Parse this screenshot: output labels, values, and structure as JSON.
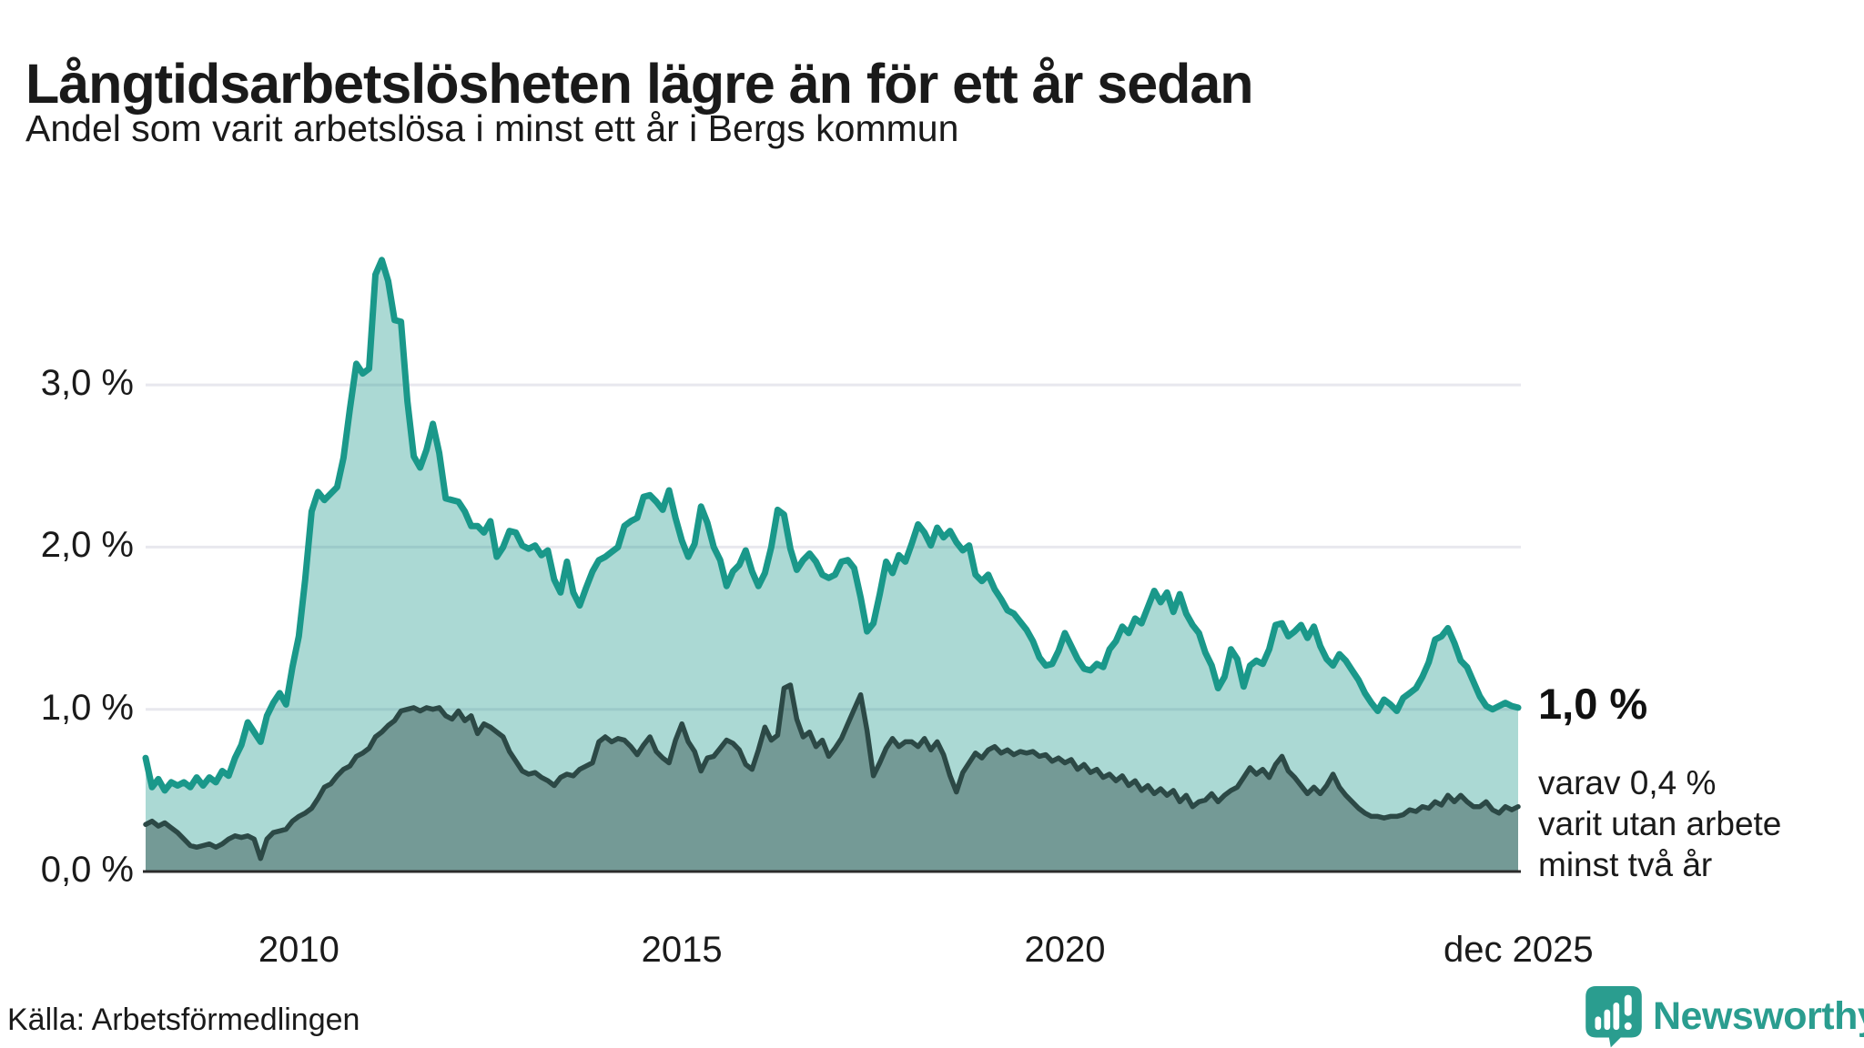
{
  "header": {
    "title": "Långtidsarbetslösheten lägre än för ett år sedan",
    "subtitle": "Andel som varit arbetslösa i minst ett år i Bergs kommun"
  },
  "annotations": {
    "end_value": "1,0 %",
    "end_sub": [
      "varav 0,4 %",
      "varit utan arbete",
      "minst två år"
    ]
  },
  "footer": {
    "source": "Källa: Arbetsförmedlingen",
    "brand": "Newsworthy"
  },
  "colors": {
    "accent_teal": "#1a988a",
    "dark_teal": "#2c4946",
    "axis": "#2b2b2b",
    "grid": "#e8e8ee",
    "brand_teal": "#2a9d8f",
    "text": "#1a1a1a"
  },
  "chart_data": {
    "type": "area",
    "title": "Långtidsarbetslösheten lägre än för ett år sedan",
    "subtitle": "Andel som varit arbetslösa i minst ett år i Bergs kommun",
    "unit": "%",
    "grid": "horizontal",
    "legend_position": "none",
    "ylim": [
      0,
      4.25
    ],
    "x_range": {
      "start": "jan 2008",
      "end": "dec 2025",
      "interval": "monthly"
    },
    "x_ticks": [
      {
        "label": "2010",
        "year": 2010.0
      },
      {
        "label": "2015",
        "year": 2015.0
      },
      {
        "label": "2020",
        "year": 2020.0
      },
      {
        "label": "dec 2025",
        "year": 2025.92
      }
    ],
    "y_ticks": [
      {
        "label": "0,0 %",
        "value": 0
      },
      {
        "label": "1,0 %",
        "value": 1
      },
      {
        "label": "2,0 %",
        "value": 2
      },
      {
        "label": "3,0 %",
        "value": 3
      }
    ],
    "series": [
      {
        "name": "Andel som varit arbetslösa i minst ett år",
        "end_label": "1,0 %",
        "color": "#1a988a",
        "fill_opacity": 0.37,
        "line_width": 7,
        "values": [
          0.7,
          0.52,
          0.57,
          0.5,
          0.55,
          0.53,
          0.55,
          0.52,
          0.58,
          0.53,
          0.58,
          0.55,
          0.62,
          0.59,
          0.7,
          0.78,
          0.92,
          0.86,
          0.8,
          0.96,
          1.04,
          1.1,
          1.03,
          1.26,
          1.45,
          1.8,
          2.22,
          2.34,
          2.29,
          2.33,
          2.37,
          2.55,
          2.85,
          3.13,
          3.07,
          3.1,
          3.68,
          3.77,
          3.64,
          3.4,
          3.39,
          2.9,
          2.56,
          2.49,
          2.6,
          2.76,
          2.58,
          2.3,
          2.29,
          2.28,
          2.22,
          2.13,
          2.13,
          2.09,
          2.16,
          1.94,
          2.0,
          2.1,
          2.09,
          2.01,
          1.99,
          2.01,
          1.95,
          1.98,
          1.8,
          1.72,
          1.91,
          1.72,
          1.64,
          1.75,
          1.85,
          1.92,
          1.94,
          1.97,
          2.0,
          2.13,
          2.16,
          2.18,
          2.31,
          2.32,
          2.28,
          2.23,
          2.35,
          2.18,
          2.04,
          1.94,
          2.02,
          2.25,
          2.15,
          2.0,
          1.92,
          1.76,
          1.85,
          1.89,
          1.98,
          1.85,
          1.76,
          1.84,
          2.0,
          2.23,
          2.2,
          1.99,
          1.86,
          1.92,
          1.96,
          1.91,
          1.83,
          1.81,
          1.83,
          1.91,
          1.92,
          1.87,
          1.69,
          1.48,
          1.53,
          1.71,
          1.91,
          1.84,
          1.95,
          1.91,
          2.02,
          2.14,
          2.09,
          2.01,
          2.12,
          2.06,
          2.1,
          2.03,
          1.98,
          2.01,
          1.83,
          1.79,
          1.83,
          1.74,
          1.68,
          1.61,
          1.59,
          1.54,
          1.49,
          1.42,
          1.32,
          1.27,
          1.28,
          1.36,
          1.47,
          1.39,
          1.31,
          1.25,
          1.24,
          1.28,
          1.26,
          1.37,
          1.42,
          1.51,
          1.47,
          1.56,
          1.53,
          1.63,
          1.73,
          1.66,
          1.72,
          1.6,
          1.71,
          1.59,
          1.52,
          1.47,
          1.35,
          1.27,
          1.13,
          1.2,
          1.37,
          1.31,
          1.14,
          1.27,
          1.3,
          1.28,
          1.37,
          1.52,
          1.53,
          1.45,
          1.48,
          1.52,
          1.44,
          1.51,
          1.39,
          1.31,
          1.27,
          1.34,
          1.3,
          1.24,
          1.18,
          1.1,
          1.04,
          0.99,
          1.06,
          1.03,
          0.99,
          1.07,
          1.1,
          1.13,
          1.2,
          1.29,
          1.43,
          1.45,
          1.5,
          1.41,
          1.3,
          1.26,
          1.17,
          1.08,
          1.02,
          1.0,
          1.02,
          1.04,
          1.02,
          1.01
        ]
      },
      {
        "name": "varav andel som varit utan arbete minst två år",
        "end_label": "varav 0,4 % varit utan arbete minst två år",
        "color": "#2c4946",
        "fill_opacity": 0.43,
        "line_width": 5.5,
        "values": [
          0.29,
          0.31,
          0.28,
          0.3,
          0.27,
          0.24,
          0.2,
          0.16,
          0.15,
          0.16,
          0.17,
          0.15,
          0.17,
          0.2,
          0.22,
          0.21,
          0.22,
          0.2,
          0.08,
          0.2,
          0.24,
          0.25,
          0.26,
          0.31,
          0.34,
          0.36,
          0.39,
          0.45,
          0.52,
          0.54,
          0.59,
          0.63,
          0.65,
          0.71,
          0.73,
          0.76,
          0.83,
          0.86,
          0.9,
          0.93,
          0.99,
          1.0,
          1.01,
          0.99,
          1.01,
          1.0,
          1.01,
          0.96,
          0.94,
          0.99,
          0.93,
          0.96,
          0.85,
          0.91,
          0.89,
          0.86,
          0.83,
          0.74,
          0.68,
          0.62,
          0.6,
          0.61,
          0.58,
          0.56,
          0.53,
          0.58,
          0.6,
          0.59,
          0.63,
          0.65,
          0.67,
          0.8,
          0.83,
          0.8,
          0.82,
          0.81,
          0.77,
          0.72,
          0.78,
          0.83,
          0.74,
          0.7,
          0.67,
          0.81,
          0.91,
          0.8,
          0.74,
          0.62,
          0.7,
          0.71,
          0.76,
          0.81,
          0.79,
          0.75,
          0.66,
          0.63,
          0.75,
          0.89,
          0.81,
          0.84,
          1.13,
          1.15,
          0.94,
          0.83,
          0.86,
          0.77,
          0.81,
          0.71,
          0.76,
          0.82,
          0.91,
          1.0,
          1.09,
          0.87,
          0.59,
          0.67,
          0.76,
          0.82,
          0.77,
          0.8,
          0.8,
          0.77,
          0.82,
          0.75,
          0.8,
          0.72,
          0.59,
          0.49,
          0.61,
          0.67,
          0.73,
          0.7,
          0.75,
          0.77,
          0.73,
          0.75,
          0.72,
          0.74,
          0.73,
          0.74,
          0.71,
          0.72,
          0.68,
          0.7,
          0.67,
          0.69,
          0.63,
          0.66,
          0.61,
          0.63,
          0.58,
          0.6,
          0.56,
          0.59,
          0.53,
          0.56,
          0.5,
          0.53,
          0.48,
          0.51,
          0.47,
          0.5,
          0.43,
          0.47,
          0.4,
          0.43,
          0.44,
          0.48,
          0.43,
          0.47,
          0.5,
          0.52,
          0.58,
          0.64,
          0.6,
          0.63,
          0.58,
          0.66,
          0.71,
          0.62,
          0.58,
          0.53,
          0.48,
          0.52,
          0.48,
          0.53,
          0.6,
          0.52,
          0.47,
          0.43,
          0.39,
          0.36,
          0.34,
          0.34,
          0.33,
          0.34,
          0.34,
          0.35,
          0.38,
          0.37,
          0.4,
          0.39,
          0.43,
          0.41,
          0.47,
          0.43,
          0.47,
          0.43,
          0.4,
          0.4,
          0.43,
          0.38,
          0.36,
          0.4,
          0.38,
          0.4
        ]
      }
    ]
  }
}
